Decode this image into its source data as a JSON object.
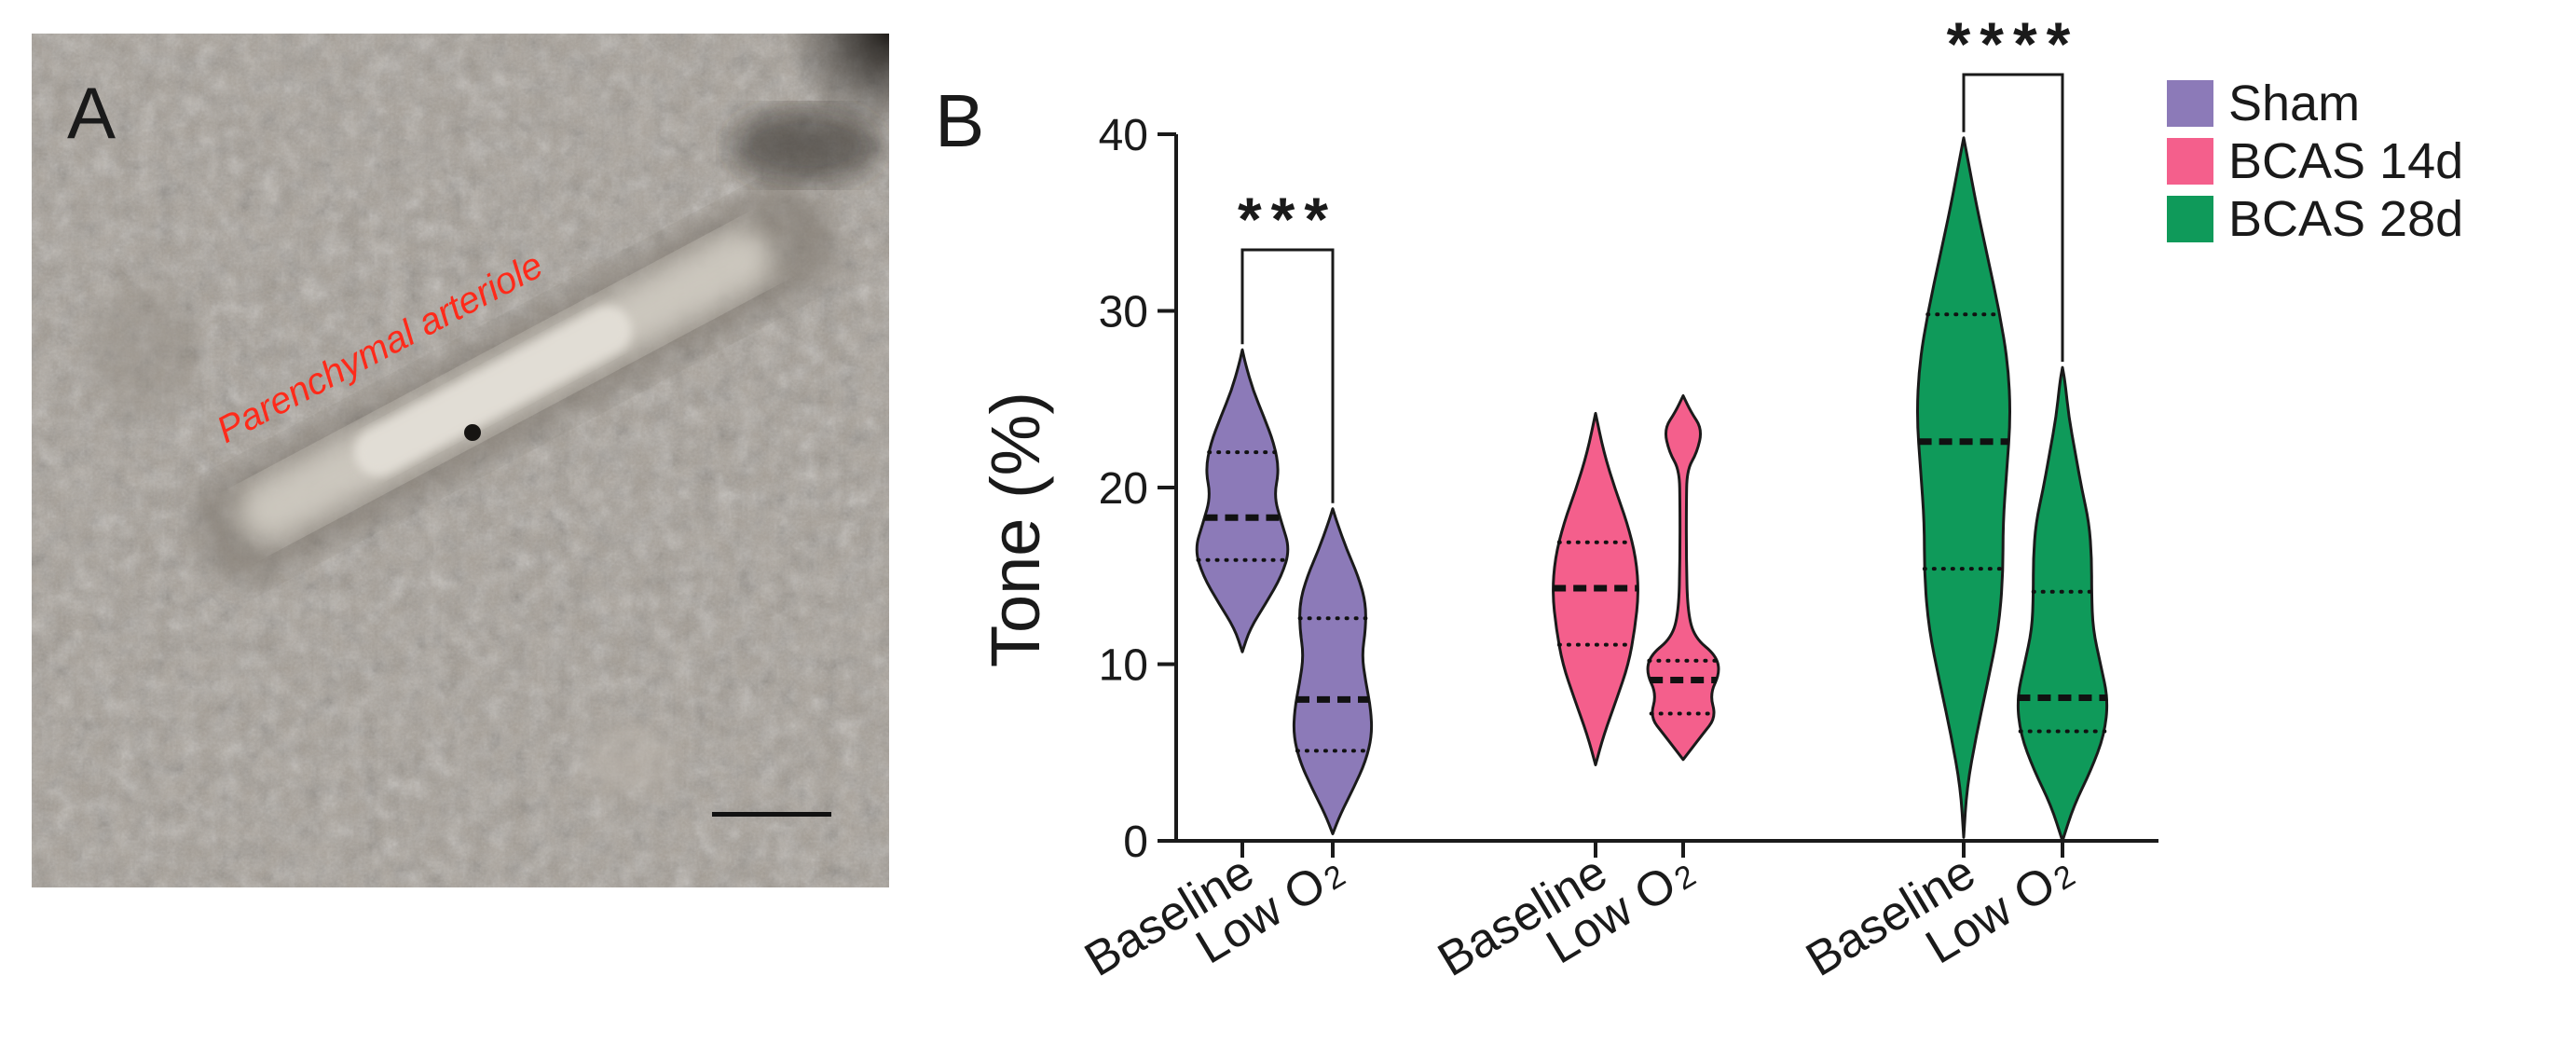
{
  "panel_a": {
    "label": "A",
    "annotation": "Parenchymal arteriole",
    "annotation_color": "#ff2a1a",
    "scale_bar_color": "#111111"
  },
  "panel_b": {
    "label": "B"
  },
  "chart_data": {
    "type": "violin",
    "ylabel": "Tone (%)",
    "ylim": [
      0,
      40
    ],
    "yticks": [
      0,
      10,
      20,
      30,
      40
    ],
    "legend": [
      {
        "label": "Sham",
        "color": "#8c7ab8"
      },
      {
        "label": "BCAS 14d",
        "color": "#f45f8c"
      },
      {
        "label": "BCAS 28d",
        "color": "#0f9a5a"
      }
    ],
    "legend_position": "top-right",
    "tick_label_main": "Low O",
    "tick_label_sub": "2",
    "groups": [
      {
        "name": "Sham",
        "color": "#8c7ab8",
        "violins": [
          {
            "label": "Baseline",
            "min": 10.7,
            "max": 27.8,
            "median": 18.3,
            "q1": 15.9,
            "q3": 22.0,
            "profile": [
              [
                10.7,
                0
              ],
              [
                12,
                0.12
              ],
              [
                13.5,
                0.38
              ],
              [
                15,
                0.62
              ],
              [
                16.5,
                0.75
              ],
              [
                18,
                0.62
              ],
              [
                19.5,
                0.5
              ],
              [
                21,
                0.58
              ],
              [
                22.5,
                0.5
              ],
              [
                24,
                0.34
              ],
              [
                25.5,
                0.17
              ],
              [
                27,
                0.05
              ],
              [
                27.8,
                0
              ]
            ]
          },
          {
            "label": "Low O2",
            "min": 0.4,
            "max": 18.8,
            "median": 8.0,
            "q1": 5.1,
            "q3": 12.6,
            "profile": [
              [
                0.4,
                0
              ],
              [
                1.5,
                0.12
              ],
              [
                3,
                0.33
              ],
              [
                4.5,
                0.52
              ],
              [
                6,
                0.62
              ],
              [
                7.5,
                0.6
              ],
              [
                9,
                0.52
              ],
              [
                10.5,
                0.46
              ],
              [
                12,
                0.52
              ],
              [
                13.5,
                0.52
              ],
              [
                15,
                0.4
              ],
              [
                16.5,
                0.22
              ],
              [
                18,
                0.07
              ],
              [
                18.8,
                0
              ]
            ]
          }
        ],
        "significance": "***"
      },
      {
        "name": "BCAS 14d",
        "color": "#f45f8c",
        "violins": [
          {
            "label": "Baseline",
            "min": 4.3,
            "max": 24.2,
            "median": 14.3,
            "q1": 11.1,
            "q3": 16.9,
            "profile": [
              [
                4.3,
                0
              ],
              [
                6,
                0.13
              ],
              [
                8,
                0.33
              ],
              [
                10,
                0.52
              ],
              [
                12,
                0.62
              ],
              [
                14,
                0.68
              ],
              [
                16,
                0.64
              ],
              [
                18,
                0.5
              ],
              [
                20,
                0.3
              ],
              [
                22,
                0.13
              ],
              [
                24.2,
                0
              ]
            ]
          },
          {
            "label": "Low O2",
            "min": 4.6,
            "max": 25.2,
            "median": 9.1,
            "q1": 7.2,
            "q3": 10.2,
            "profile": [
              [
                4.6,
                0
              ],
              [
                6,
                0.3
              ],
              [
                7,
                0.52
              ],
              [
                8.3,
                0.42
              ],
              [
                9.5,
                0.58
              ],
              [
                10.5,
                0.52
              ],
              [
                11.5,
                0.18
              ],
              [
                13,
                0.07
              ],
              [
                16,
                0.05
              ],
              [
                19,
                0.05
              ],
              [
                21,
                0.06
              ],
              [
                22,
                0.22
              ],
              [
                23.3,
                0.3
              ],
              [
                24.3,
                0.12
              ],
              [
                25.2,
                0
              ]
            ]
          }
        ],
        "significance": ""
      },
      {
        "name": "BCAS 28d",
        "color": "#0f9a5a",
        "violins": [
          {
            "label": "Baseline",
            "min": 0.2,
            "max": 39.8,
            "median": 22.6,
            "q1": 15.4,
            "q3": 29.8,
            "profile": [
              [
                0.2,
                0
              ],
              [
                3,
                0.05
              ],
              [
                6,
                0.2
              ],
              [
                9,
                0.38
              ],
              [
                12,
                0.55
              ],
              [
                15,
                0.62
              ],
              [
                18,
                0.62
              ],
              [
                21,
                0.68
              ],
              [
                24,
                0.74
              ],
              [
                27,
                0.7
              ],
              [
                30,
                0.56
              ],
              [
                33,
                0.38
              ],
              [
                36,
                0.2
              ],
              [
                38.5,
                0.07
              ],
              [
                39.8,
                0
              ]
            ]
          },
          {
            "label": "Low O2",
            "min": 0.0,
            "max": 26.8,
            "median": 8.1,
            "q1": 6.2,
            "q3": 14.1,
            "profile": [
              [
                0,
                0
              ],
              [
                2,
                0.18
              ],
              [
                4,
                0.45
              ],
              [
                6,
                0.66
              ],
              [
                8,
                0.72
              ],
              [
                10,
                0.6
              ],
              [
                12,
                0.48
              ],
              [
                14,
                0.46
              ],
              [
                16,
                0.46
              ],
              [
                18,
                0.42
              ],
              [
                20,
                0.3
              ],
              [
                22,
                0.2
              ],
              [
                24,
                0.1
              ],
              [
                26,
                0.04
              ],
              [
                26.8,
                0
              ]
            ]
          }
        ],
        "significance": "****"
      }
    ]
  }
}
